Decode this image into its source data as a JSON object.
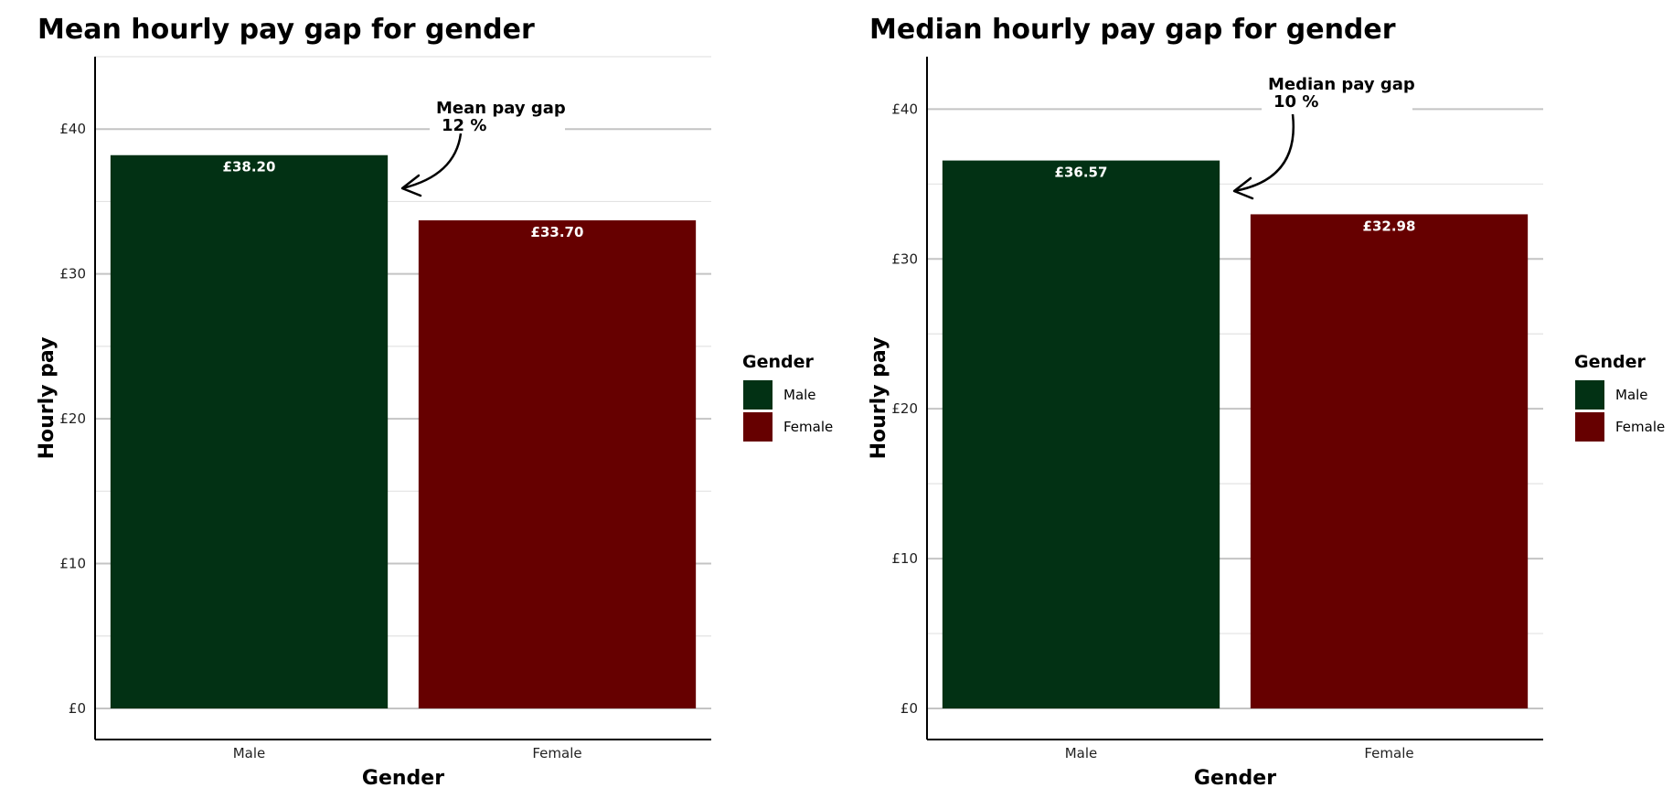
{
  "chart_data": [
    {
      "type": "bar",
      "title": "Mean hourly pay gap for gender",
      "xlabel": "Gender",
      "ylabel": "Hourly pay",
      "categories": [
        "Male",
        "Female"
      ],
      "values": [
        38.2,
        33.7
      ],
      "value_labels": [
        "£38.20",
        "£33.70"
      ],
      "ylim": [
        0,
        45
      ],
      "yticks": [
        0,
        10,
        20,
        30,
        40
      ],
      "ytick_labels": [
        "£0",
        "£10",
        "£20",
        "£30",
        "£40"
      ],
      "grid": true,
      "legend": {
        "title": "Gender",
        "position": "right",
        "entries": [
          "Male",
          "Female"
        ]
      },
      "colors": [
        "#023114",
        "#660000"
      ],
      "annotation": {
        "line1": "Mean pay gap",
        "line2": "12 %"
      }
    },
    {
      "type": "bar",
      "title": "Median hourly pay gap for gender",
      "xlabel": "Gender",
      "ylabel": "Hourly pay",
      "categories": [
        "Male",
        "Female"
      ],
      "values": [
        36.57,
        32.98
      ],
      "value_labels": [
        "£36.57",
        "£32.98"
      ],
      "ylim": [
        0,
        43.5
      ],
      "yticks": [
        0,
        10,
        20,
        30,
        40
      ],
      "ytick_labels": [
        "£0",
        "£10",
        "£20",
        "£30",
        "£40"
      ],
      "grid": true,
      "legend": {
        "title": "Gender",
        "position": "right",
        "entries": [
          "Male",
          "Female"
        ]
      },
      "colors": [
        "#023114",
        "#660000"
      ],
      "annotation": {
        "line1": "Median pay gap",
        "line2": "10 %"
      }
    }
  ]
}
